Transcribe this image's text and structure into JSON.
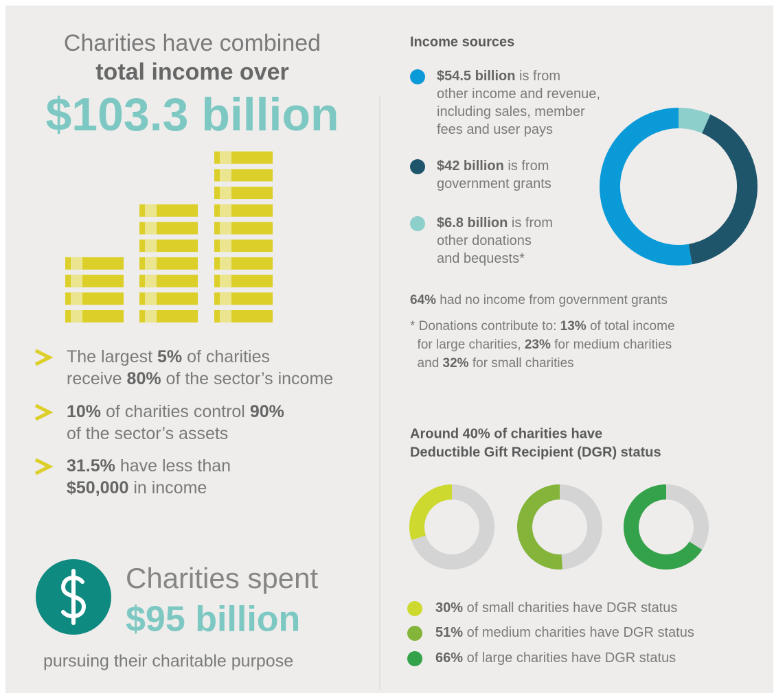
{
  "headline": {
    "line1": "Charities have combined",
    "line2": "total income over",
    "amount": "$103.3 billion"
  },
  "facts": [
    [
      [
        {
          "text": "The largest "
        },
        {
          "text": "5%",
          "bold": true
        },
        {
          "text": " of charities"
        }
      ],
      [
        {
          "text": "receive "
        },
        {
          "text": "80%",
          "bold": true
        },
        {
          "text": " of the sector’s income"
        }
      ]
    ],
    [
      [
        {
          "text": "10%",
          "bold": true
        },
        {
          "text": " of charities control "
        },
        {
          "text": "90%",
          "bold": true
        }
      ],
      [
        {
          "text": "of the sector’s assets"
        }
      ]
    ],
    [
      [
        {
          "text": "31.5%",
          "bold": true
        },
        {
          "text": " have less than"
        }
      ],
      [
        {
          "text": "$50,000",
          "bold": true
        },
        {
          "text": " in income"
        }
      ]
    ]
  ],
  "spending": {
    "line1": "Charities spent",
    "amount": "$95 billion",
    "line3": "pursuing their charitable purpose"
  },
  "chart_data": [
    {
      "type": "pie",
      "title": "Income sources",
      "donut": true,
      "direction": "counterclockwise",
      "values": [
        54.5,
        42,
        6.8
      ],
      "value_labels": [
        "$54.5 billion",
        "$42 billion",
        "$6.8 billion"
      ],
      "categories": [
        [
          " is from",
          "other income and revenue,",
          "including sales, member",
          "fees and user pays"
        ],
        [
          " is from",
          "government grants"
        ],
        [
          " is from",
          "other donations",
          "and bequests*"
        ]
      ],
      "colors": [
        "#0b9ad8",
        "#1f556b",
        "#8dcfcb"
      ],
      "notes": [
        [
          [
            {
              "text": "64%",
              "bold": true
            },
            {
              "text": " had no income from government grants"
            }
          ]
        ],
        [
          [
            {
              "text": "* Donations contribute to: "
            },
            {
              "text": "13%",
              "bold": true
            },
            {
              "text": " of total income"
            }
          ],
          [
            {
              "text": "  for large charities, "
            },
            {
              "text": "23%",
              "bold": true
            },
            {
              "text": " for medium charities"
            }
          ],
          [
            {
              "text": "  and "
            },
            {
              "text": "32%",
              "bold": true
            },
            {
              "text": " for small charities"
            }
          ]
        ]
      ]
    },
    {
      "type": "pie",
      "title": [
        "Around 40% of charities have",
        "Deductible Gift Recipient (DGR) status"
      ],
      "donut": true,
      "direction": "counterclockwise",
      "values": [
        30,
        51,
        66
      ],
      "value_labels": [
        "30%",
        "51%",
        "66%"
      ],
      "categories": [
        " of small charities have DGR status",
        " of medium charities have DGR status",
        " of large charities have DGR status"
      ],
      "colors": [
        "#cdd92f",
        "#84b43a",
        "#34a24a"
      ],
      "remainder_color": "#d4d4d4"
    }
  ]
}
